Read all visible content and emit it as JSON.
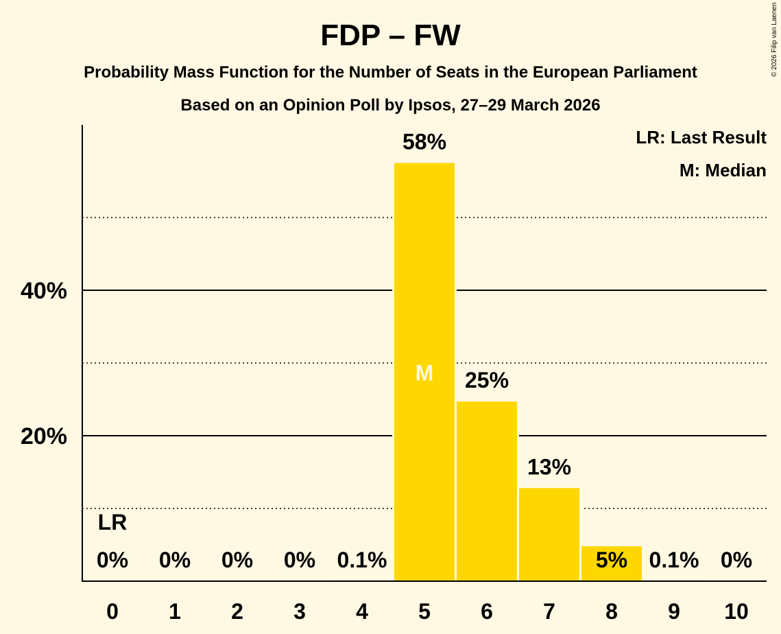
{
  "chart_data": {
    "type": "bar",
    "title": "FDP – FW",
    "subtitle": "Probability Mass Function for the Number of Seats in the European Parliament",
    "subtitle2": "Based on an Opinion Poll by Ipsos, 27–29 March 2026",
    "categories": [
      "0",
      "1",
      "2",
      "3",
      "4",
      "5",
      "6",
      "7",
      "8",
      "9",
      "10"
    ],
    "values": [
      0,
      0,
      0,
      0,
      0.1,
      57.5,
      24.7,
      12.8,
      4.8,
      0.1,
      0
    ],
    "labels": [
      "0%",
      "0%",
      "0%",
      "0%",
      "0.1%",
      "58%",
      "25%",
      "13%",
      "5%",
      "0.1%",
      "0%"
    ],
    "ylim": [
      0,
      63
    ],
    "yticks_major": [
      20,
      40
    ],
    "yticks_minor": [
      10,
      30,
      50
    ],
    "ytick_labels": [
      "20%",
      "40%"
    ],
    "bar_color": "#FFD700",
    "median_seat": "5",
    "median_marker": "M",
    "last_result_seat": "0",
    "last_result_marker": "LR",
    "legend": [
      "LR: Last Result",
      "M: Median"
    ],
    "copyright": "© 2026 Filip van Laenen"
  }
}
